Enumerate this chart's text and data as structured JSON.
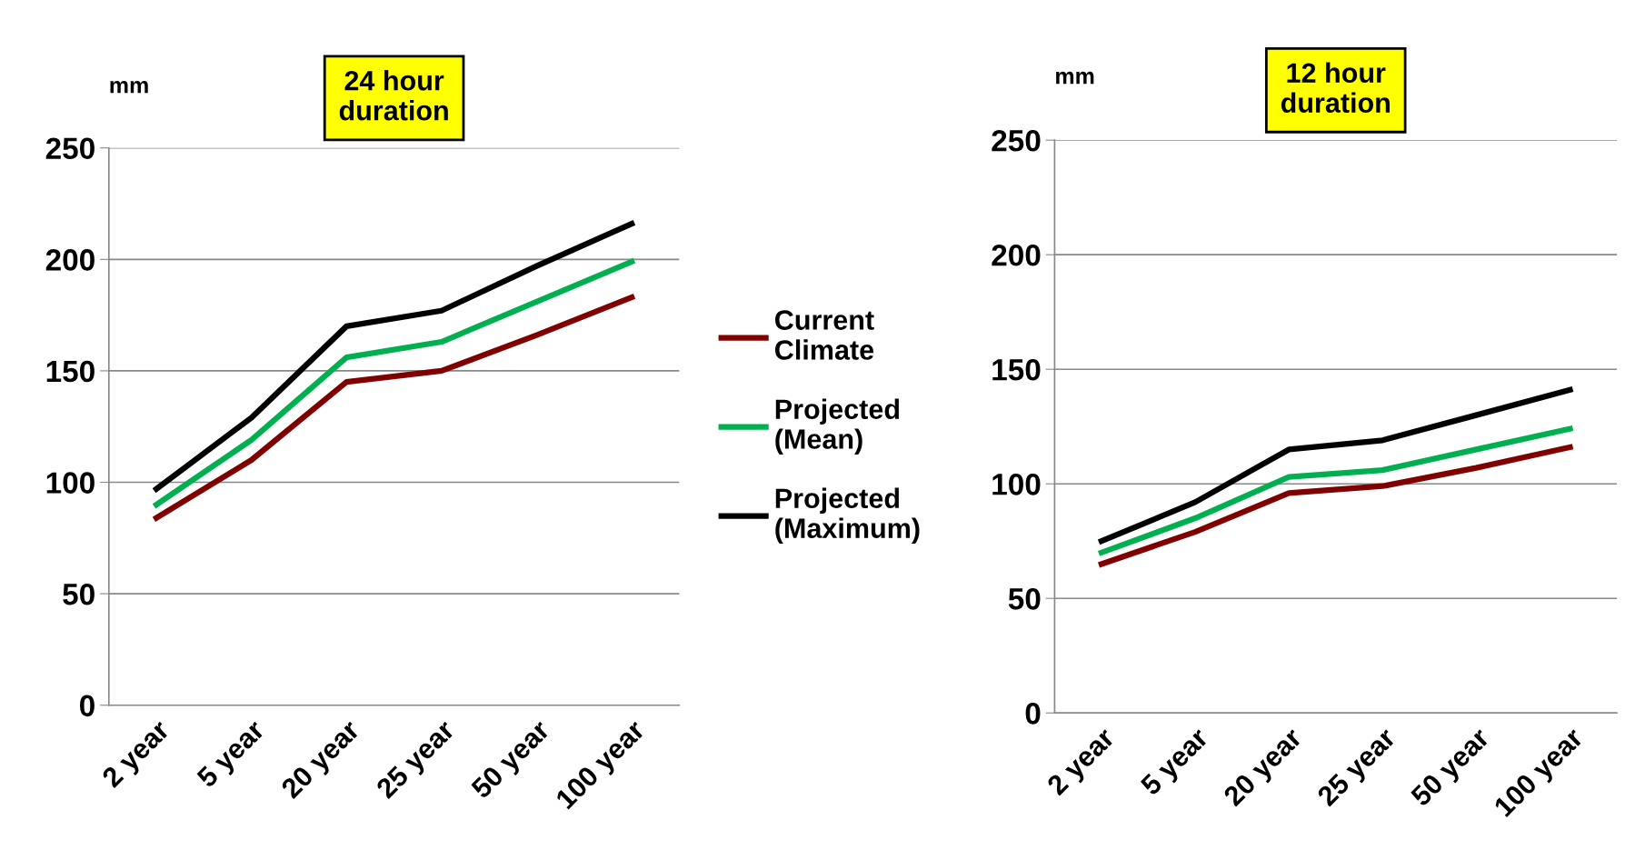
{
  "chart_data": [
    {
      "type": "line",
      "title": "24 hour\nduration",
      "ylabel": "mm",
      "categories": [
        "2 year",
        "5 year",
        "20 year",
        "25 year",
        "50 year",
        "100 year"
      ],
      "ylim": [
        0,
        250
      ],
      "yticks": [
        0,
        50,
        100,
        150,
        200,
        250
      ],
      "grid": "y",
      "legend": "right",
      "series": [
        {
          "name": "Current\nClimate",
          "color": "#800000",
          "values": [
            84,
            110,
            145,
            150,
            166,
            183
          ]
        },
        {
          "name": "Projected\n(Mean)",
          "color": "#00b050",
          "values": [
            90,
            119,
            156,
            163,
            181,
            199
          ]
        },
        {
          "name": "Projected\n(Maximum)",
          "color": "#000000",
          "values": [
            97,
            129,
            170,
            177,
            197,
            216
          ]
        }
      ]
    },
    {
      "type": "line",
      "title": "12 hour\nduration",
      "ylabel": "mm",
      "categories": [
        "2 year",
        "5 year",
        "20 year",
        "25 year",
        "50 year",
        "100 year"
      ],
      "ylim": [
        0,
        250
      ],
      "yticks": [
        0,
        50,
        100,
        150,
        200,
        250
      ],
      "grid": "y",
      "series": [
        {
          "color": "#800000",
          "values": [
            65,
            79,
            96,
            99,
            107,
            116
          ]
        },
        {
          "color": "#00b050",
          "values": [
            70,
            85,
            103,
            106,
            115,
            124
          ]
        },
        {
          "color": "#000000",
          "values": [
            75,
            92,
            115,
            119,
            130,
            141
          ]
        }
      ]
    }
  ]
}
